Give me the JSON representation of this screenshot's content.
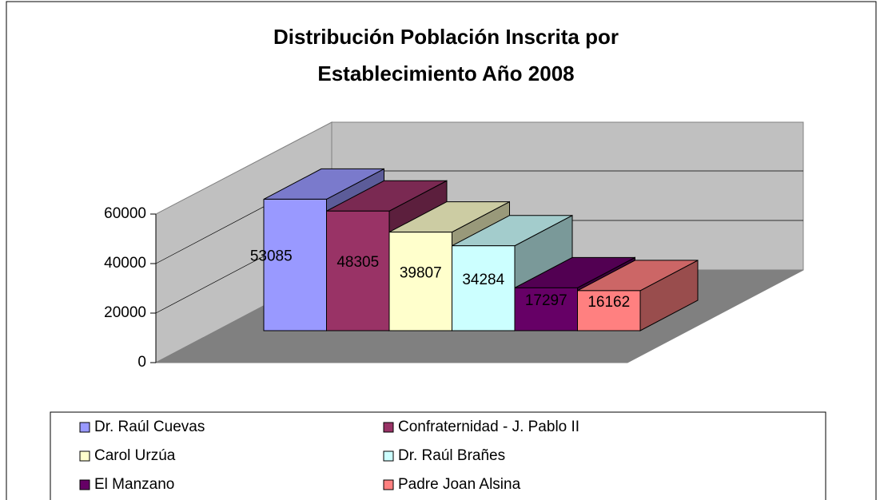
{
  "chart_data": {
    "type": "bar3d",
    "title": [
      "Distribución Población Inscrita por",
      "Establecimiento Año 2008"
    ],
    "categories": [
      "Dr. Raúl Cuevas",
      "Confraternidad - J. Pablo II",
      "Carol Urzúa",
      "Dr. Raúl Brañes",
      "El Manzano",
      "Padre Joan Alsina"
    ],
    "values": [
      53085,
      48305,
      39807,
      34284,
      17297,
      16162
    ],
    "colors": [
      "#9999ff",
      "#993366",
      "#ffffcc",
      "#ccffff",
      "#660066",
      "#ff8080"
    ],
    "ylim": [
      0,
      60000
    ],
    "yticks": [
      0,
      20000,
      40000,
      60000
    ],
    "grid": true,
    "legend": "bottom"
  }
}
